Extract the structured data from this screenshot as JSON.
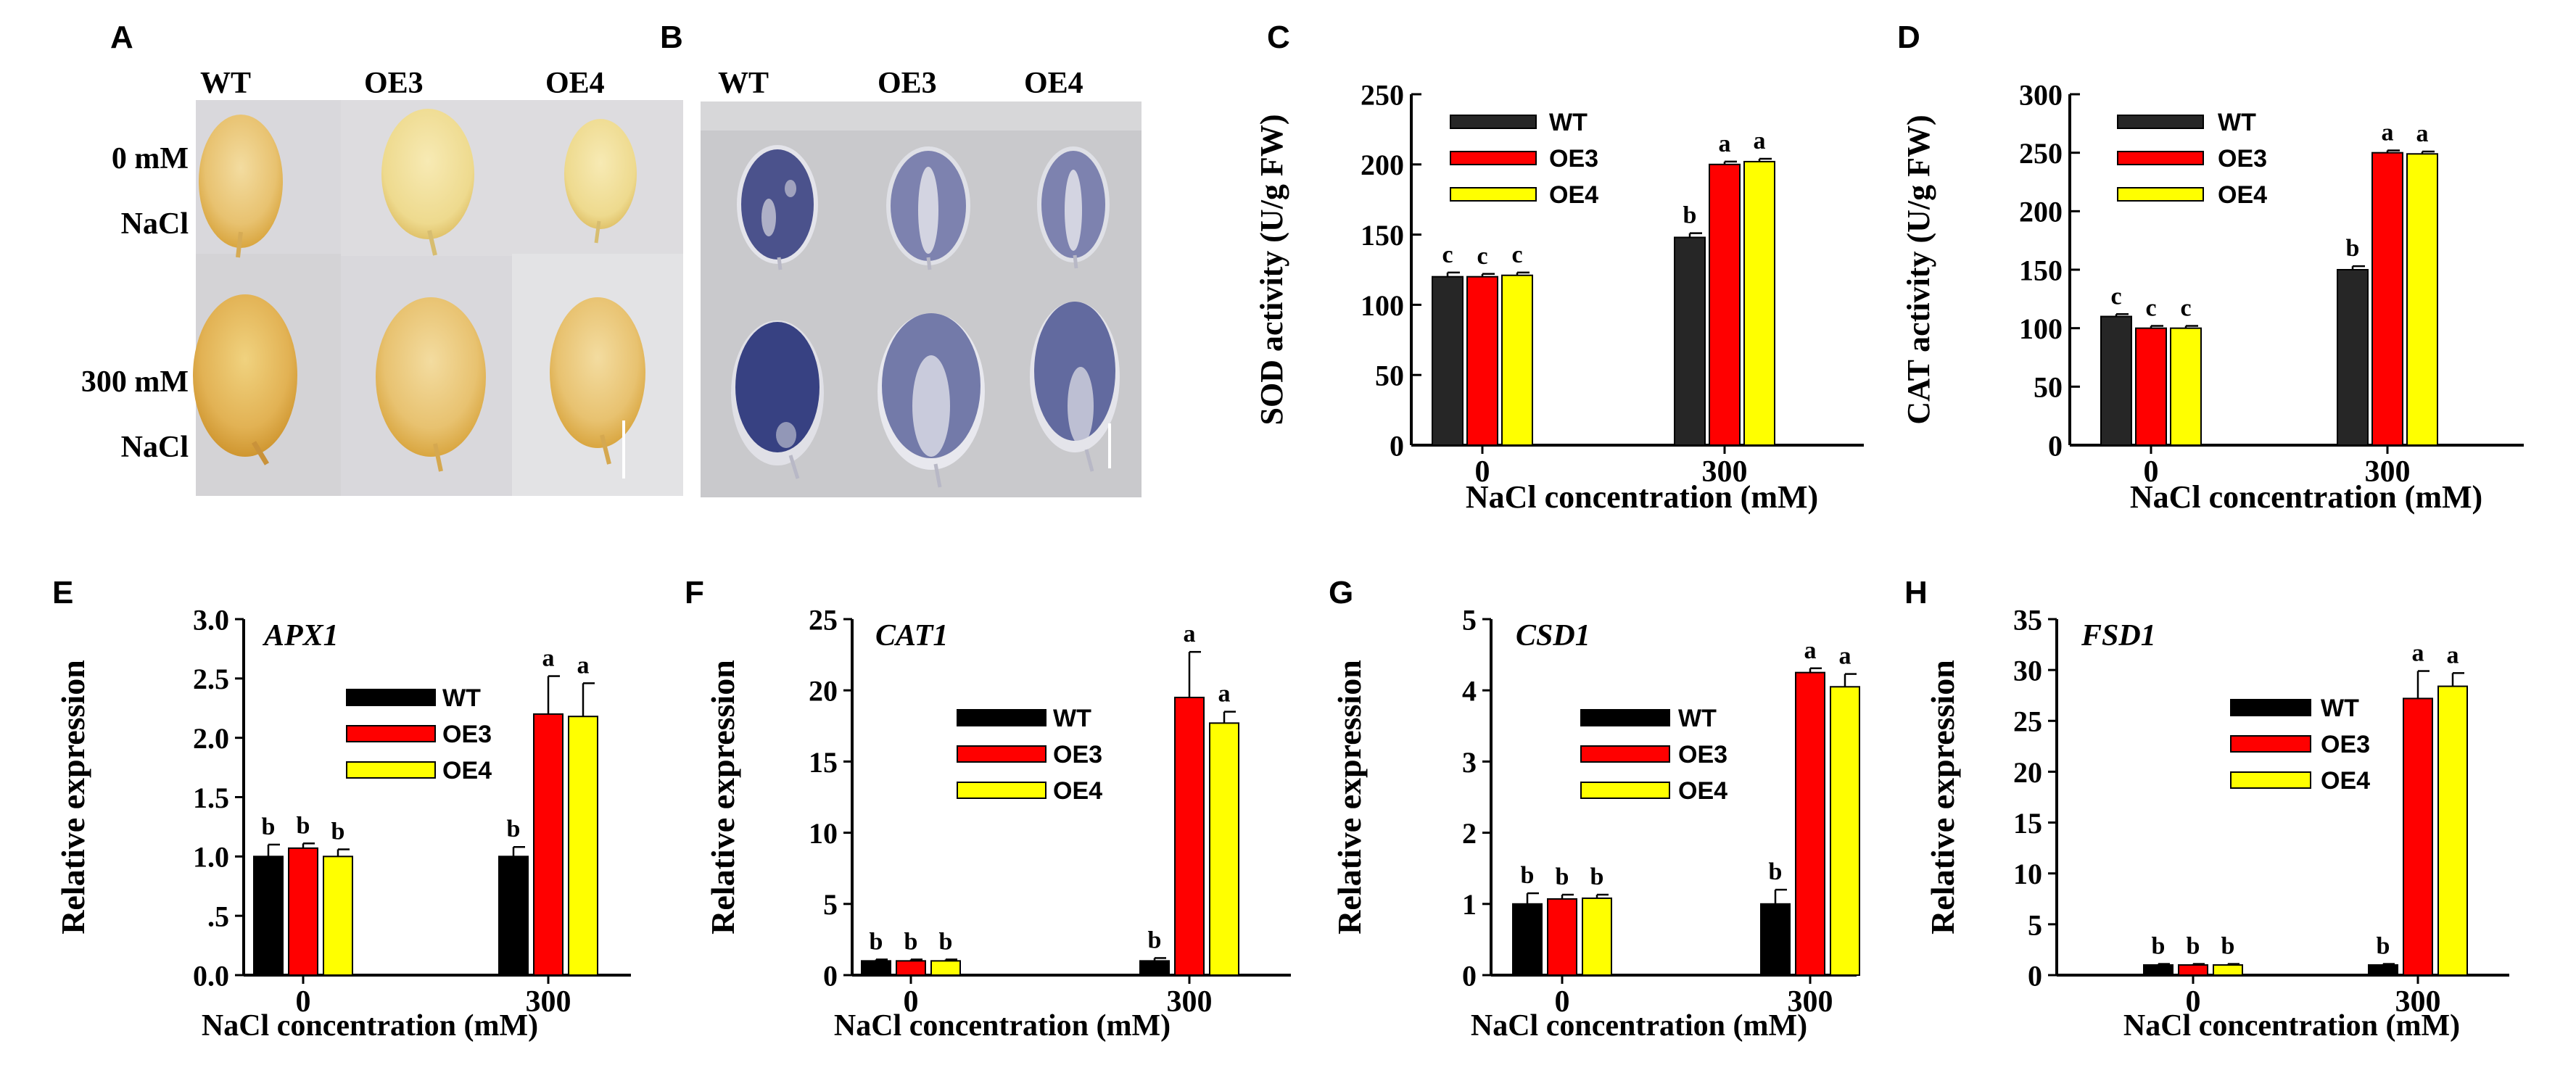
{
  "photos": {
    "A": {
      "label": "A",
      "columns": [
        "WT",
        "OE3",
        "OE4"
      ],
      "row0_line1": "0 mM",
      "row0_line2": "NaCl",
      "row1_line1": "300 mM",
      "row1_line2": "NaCl"
    },
    "B": {
      "label": "B",
      "columns": [
        "WT",
        "OE3",
        "OE4"
      ]
    }
  },
  "chart_data": [
    {
      "id": "C",
      "label": "C",
      "type": "bar",
      "ylabel": "SOD activity (U/g FW)",
      "xlabel": "NaCl concentration (mM)",
      "ylim": [
        0,
        250
      ],
      "yticks": [
        0,
        50,
        100,
        150,
        200,
        250
      ],
      "ytick_labels": [
        "0",
        "50",
        "100",
        "150",
        "200",
        "250"
      ],
      "categories": [
        "0",
        "300"
      ],
      "series": [
        {
          "name": "WT",
          "values": [
            120,
            148
          ],
          "errors": [
            3,
            3
          ],
          "letters": [
            "c",
            "b"
          ]
        },
        {
          "name": "OE3",
          "values": [
            120,
            200
          ],
          "errors": [
            2,
            2
          ],
          "letters": [
            "c",
            "a"
          ]
        },
        {
          "name": "OE4",
          "values": [
            121,
            202
          ],
          "errors": [
            2,
            2
          ],
          "letters": [
            "c",
            "a"
          ]
        }
      ],
      "colors": {
        "WT": "#262626",
        "OE3": "#ff0000",
        "OE4": "#ffff00"
      },
      "legend": "top-left"
    },
    {
      "id": "D",
      "label": "D",
      "type": "bar",
      "ylabel": "CAT activity (U/g FW)",
      "xlabel": "NaCl concentration (mM)",
      "ylim": [
        0,
        300
      ],
      "yticks": [
        0,
        50,
        100,
        150,
        200,
        250,
        300
      ],
      "ytick_labels": [
        "0",
        "50",
        "100",
        "150",
        "200",
        "250",
        "300"
      ],
      "categories": [
        "0",
        "300"
      ],
      "series": [
        {
          "name": "WT",
          "values": [
            110,
            150
          ],
          "errors": [
            2,
            3
          ],
          "letters": [
            "c",
            "b"
          ]
        },
        {
          "name": "OE3",
          "values": [
            100,
            250
          ],
          "errors": [
            2,
            2
          ],
          "letters": [
            "c",
            "a"
          ]
        },
        {
          "name": "OE4",
          "values": [
            100,
            249
          ],
          "errors": [
            2,
            2
          ],
          "letters": [
            "c",
            "a"
          ]
        }
      ],
      "colors": {
        "WT": "#262626",
        "OE3": "#ff0000",
        "OE4": "#ffff00"
      },
      "legend": "top-left"
    },
    {
      "id": "E",
      "label": "E",
      "type": "bar",
      "gene": "APX1",
      "ylabel": "Relative expression",
      "xlabel": "NaCl concentration (mM)",
      "ylim": [
        0,
        3.0
      ],
      "yticks": [
        0,
        0.5,
        1.0,
        1.5,
        2.0,
        2.5,
        3.0
      ],
      "ytick_labels": [
        "0.0",
        ".5",
        "1.0",
        "1.5",
        "2.0",
        "2.5",
        "3.0"
      ],
      "categories": [
        "0",
        "300"
      ],
      "series": [
        {
          "name": "WT",
          "values": [
            1.0,
            1.0
          ],
          "errors": [
            0.1,
            0.08
          ],
          "letters": [
            "b",
            "b"
          ]
        },
        {
          "name": "OE3",
          "values": [
            1.07,
            2.2
          ],
          "errors": [
            0.04,
            0.32
          ],
          "letters": [
            "b",
            "a"
          ]
        },
        {
          "name": "OE4",
          "values": [
            1.0,
            2.18
          ],
          "errors": [
            0.06,
            0.28
          ],
          "letters": [
            "b",
            "a"
          ]
        }
      ],
      "colors": {
        "WT": "#000000",
        "OE3": "#ff0000",
        "OE4": "#ffff00"
      },
      "legend": "center"
    },
    {
      "id": "F",
      "label": "F",
      "type": "bar",
      "gene": "CAT1",
      "ylabel": "Relative expression",
      "xlabel": "NaCl concentration (mM)",
      "ylim": [
        0,
        25
      ],
      "yticks": [
        0,
        5,
        10,
        15,
        20,
        25
      ],
      "ytick_labels": [
        "0",
        "5",
        "10",
        "15",
        "20",
        "25"
      ],
      "categories": [
        "0",
        "300"
      ],
      "series": [
        {
          "name": "WT",
          "values": [
            1.0,
            1.0
          ],
          "errors": [
            0.1,
            0.2
          ],
          "letters": [
            "b",
            "b"
          ]
        },
        {
          "name": "OE3",
          "values": [
            1.0,
            19.5
          ],
          "errors": [
            0.1,
            3.2
          ],
          "letters": [
            "b",
            "a"
          ]
        },
        {
          "name": "OE4",
          "values": [
            1.0,
            17.7
          ],
          "errors": [
            0.1,
            0.8
          ],
          "letters": [
            "b",
            "a"
          ]
        }
      ],
      "colors": {
        "WT": "#000000",
        "OE3": "#ff0000",
        "OE4": "#ffff00"
      },
      "legend": "center"
    },
    {
      "id": "G",
      "label": "G",
      "type": "bar",
      "gene": "CSD1",
      "ylabel": "Relative expression",
      "xlabel": "NaCl concentration (mM)",
      "ylim": [
        0,
        5
      ],
      "yticks": [
        0,
        1,
        2,
        3,
        4,
        5
      ],
      "ytick_labels": [
        "0",
        "1",
        "2",
        "3",
        "4",
        "5"
      ],
      "categories": [
        "0",
        "300"
      ],
      "series": [
        {
          "name": "WT",
          "values": [
            1.0,
            1.0
          ],
          "errors": [
            0.15,
            0.2
          ],
          "letters": [
            "b",
            "b"
          ]
        },
        {
          "name": "OE3",
          "values": [
            1.07,
            4.25
          ],
          "errors": [
            0.06,
            0.06
          ],
          "letters": [
            "b",
            "a"
          ]
        },
        {
          "name": "OE4",
          "values": [
            1.08,
            4.05
          ],
          "errors": [
            0.05,
            0.18
          ],
          "letters": [
            "b",
            "a"
          ]
        }
      ],
      "colors": {
        "WT": "#000000",
        "OE3": "#ff0000",
        "OE4": "#ffff00"
      },
      "legend": "center"
    },
    {
      "id": "H",
      "label": "H",
      "type": "bar",
      "gene": "FSD1",
      "ylabel": "Relative expression",
      "xlabel": "NaCl concentration (mM)",
      "ylim": [
        0,
        35
      ],
      "yticks": [
        0,
        5,
        10,
        15,
        20,
        25,
        30,
        35
      ],
      "ytick_labels": [
        "0",
        "5",
        "10",
        "15",
        "20",
        "25",
        "30",
        "35"
      ],
      "categories": [
        "0",
        "300"
      ],
      "series": [
        {
          "name": "WT",
          "values": [
            1.0,
            1.0
          ],
          "errors": [
            0.1,
            0.1
          ],
          "letters": [
            "b",
            "b"
          ]
        },
        {
          "name": "OE3",
          "values": [
            1.0,
            27.2
          ],
          "errors": [
            0.1,
            2.7
          ],
          "letters": [
            "b",
            "a"
          ]
        },
        {
          "name": "OE4",
          "values": [
            1.0,
            28.4
          ],
          "errors": [
            0.1,
            1.3
          ],
          "letters": [
            "b",
            "a"
          ]
        }
      ],
      "colors": {
        "WT": "#000000",
        "OE3": "#ff0000",
        "OE4": "#ffff00"
      },
      "legend": "center"
    }
  ]
}
